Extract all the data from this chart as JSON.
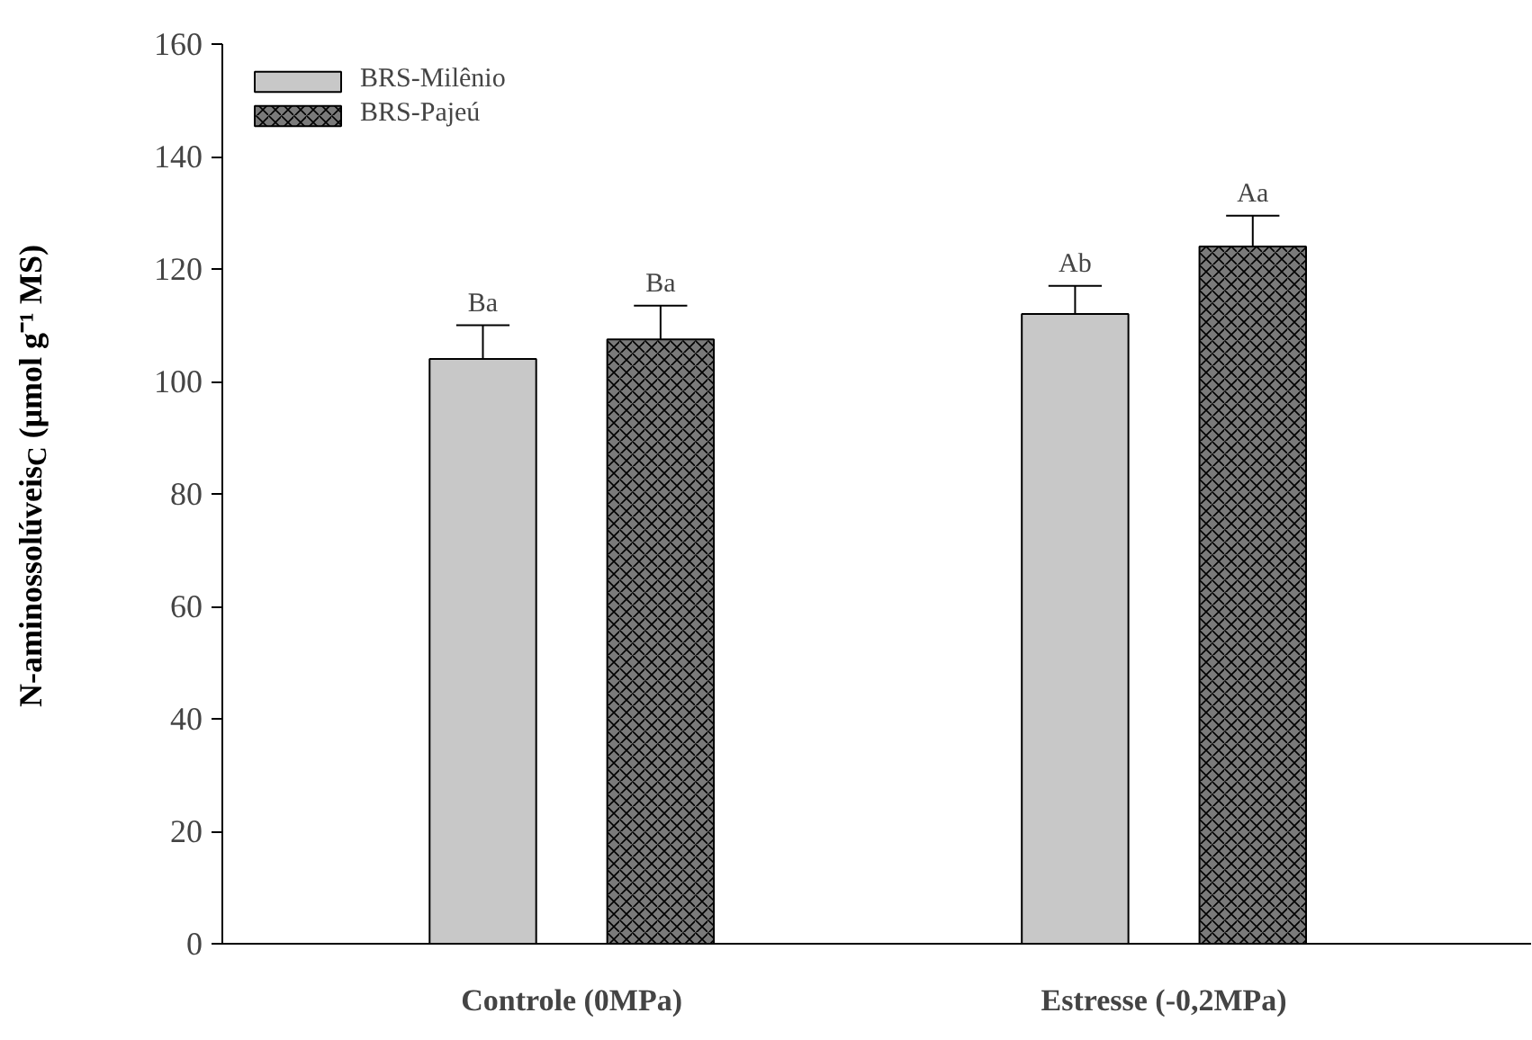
{
  "chart_data": {
    "type": "bar",
    "categories": [
      "Controle (0MPa)",
      "Estresse (-0,2MPa)"
    ],
    "ylabel": "N-aminossolúveis$_{C}$ (μmol g⁻¹ MS)",
    "series": [
      {
        "name": "BRS-Milênio",
        "color": "#c8c8c8",
        "values": [
          104,
          112
        ],
        "errors": [
          6,
          5
        ]
      },
      {
        "name": "BRS-Pajeú",
        "color": "#7a7a7a",
        "values": [
          107.5,
          124
        ],
        "errors": [
          6,
          5.5
        ]
      }
    ],
    "annotations": [
      "Ba",
      "Ba",
      "Ab",
      "Aa"
    ],
    "ylim": [
      0,
      160
    ],
    "yticks": [
      0,
      20,
      40,
      60,
      80,
      100,
      120,
      140,
      160
    ],
    "legend": "top left",
    "grid": false
  }
}
